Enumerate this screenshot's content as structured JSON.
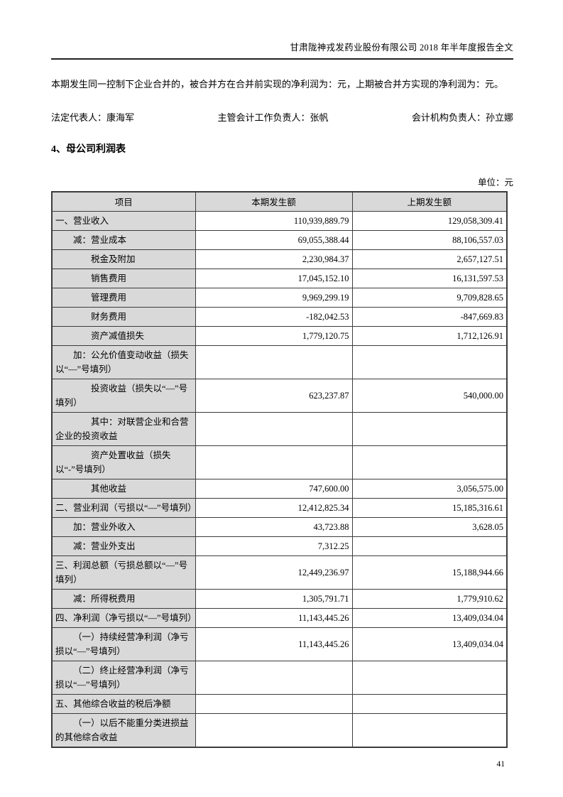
{
  "page": {
    "header_title": "甘肃陇神戎发药业股份有限公司 2018 年半年度报告全文",
    "intro_paragraph": "本期发生同一控制下企业合并的，被合并方在合并前实现的净利润为：元，上期被合并方实现的净利润为：元。",
    "signatories": {
      "legal_representative": "法定代表人：康海军",
      "chief_accountant": "主管会计工作负责人：张帆",
      "accounting_head": "会计机构负责人：孙立娜"
    },
    "section_title": "4、母公司利润表",
    "unit_label": "单位：元",
    "page_number": "41"
  },
  "colors": {
    "cell_fill": "#d9d9d9",
    "table_border": "#3c3c3c"
  },
  "table": {
    "headers": [
      "项目",
      "本期发生额",
      "上期发生额"
    ],
    "rows": [
      {
        "item": "一、营业收入",
        "indent": 0,
        "tall": false,
        "current": "110,939,889.79",
        "prior": "129,058,309.41"
      },
      {
        "item": "减：营业成本",
        "indent": 1,
        "tall": false,
        "current": "69,055,388.44",
        "prior": "88,106,557.03"
      },
      {
        "item": "税金及附加",
        "indent": 2,
        "tall": false,
        "current": "2,230,984.37",
        "prior": "2,657,127.51"
      },
      {
        "item": "销售费用",
        "indent": 2,
        "tall": false,
        "current": "17,045,152.10",
        "prior": "16,131,597.53"
      },
      {
        "item": "管理费用",
        "indent": 2,
        "tall": false,
        "current": "9,969,299.19",
        "prior": "9,709,828.65"
      },
      {
        "item": "财务费用",
        "indent": 2,
        "tall": false,
        "current": "-182,042.53",
        "prior": "-847,669.83"
      },
      {
        "item": "资产减值损失",
        "indent": 2,
        "tall": false,
        "current": "1,779,120.75",
        "prior": "1,712,126.91"
      },
      {
        "item": "加：公允价值变动收益（损失以“—”号填列）",
        "indent": 1,
        "tall": true,
        "current": "",
        "prior": ""
      },
      {
        "item": "投资收益（损失以“—”号填列）",
        "indent": 2,
        "tall": true,
        "current": "623,237.87",
        "prior": "540,000.00"
      },
      {
        "item": "其中：对联营企业和合营企业的投资收益",
        "indent": 2,
        "tall": true,
        "current": "",
        "prior": ""
      },
      {
        "item": "资产处置收益（损失以“-”号填列）",
        "indent": 2,
        "tall": true,
        "current": "",
        "prior": ""
      },
      {
        "item": "其他收益",
        "indent": 2,
        "tall": false,
        "current": "747,600.00",
        "prior": "3,056,575.00"
      },
      {
        "item": "二、营业利润（亏损以“—”号填列）",
        "indent": 0,
        "tall": false,
        "current": "12,412,825.34",
        "prior": "15,185,316.61"
      },
      {
        "item": "加：营业外收入",
        "indent": 1,
        "tall": false,
        "current": "43,723.88",
        "prior": "3,628.05"
      },
      {
        "item": "减：营业外支出",
        "indent": 1,
        "tall": false,
        "current": "7,312.25",
        "prior": ""
      },
      {
        "item": "三、利润总额（亏损总额以“—”号填列）",
        "indent": 0,
        "tall": true,
        "current": "12,449,236.97",
        "prior": "15,188,944.66"
      },
      {
        "item": "减：所得税费用",
        "indent": 1,
        "tall": false,
        "current": "1,305,791.71",
        "prior": "1,779,910.62"
      },
      {
        "item": "四、净利润（净亏损以“—”号填列）",
        "indent": 0,
        "tall": false,
        "current": "11,143,445.26",
        "prior": "13,409,034.04"
      },
      {
        "item": "（一）持续经营净利润（净亏损以“—”号填列）",
        "indent": 1,
        "tall": true,
        "current": "11,143,445.26",
        "prior": "13,409,034.04"
      },
      {
        "item": "（二）终止经营净利润（净亏损以“—”号填列）",
        "indent": 1,
        "tall": true,
        "current": "",
        "prior": ""
      },
      {
        "item": "五、其他综合收益的税后净额",
        "indent": 0,
        "tall": false,
        "current": "",
        "prior": ""
      },
      {
        "item": "（一）以后不能重分类进损益的其他综合收益",
        "indent": 1,
        "tall": true,
        "current": "",
        "prior": ""
      }
    ]
  }
}
